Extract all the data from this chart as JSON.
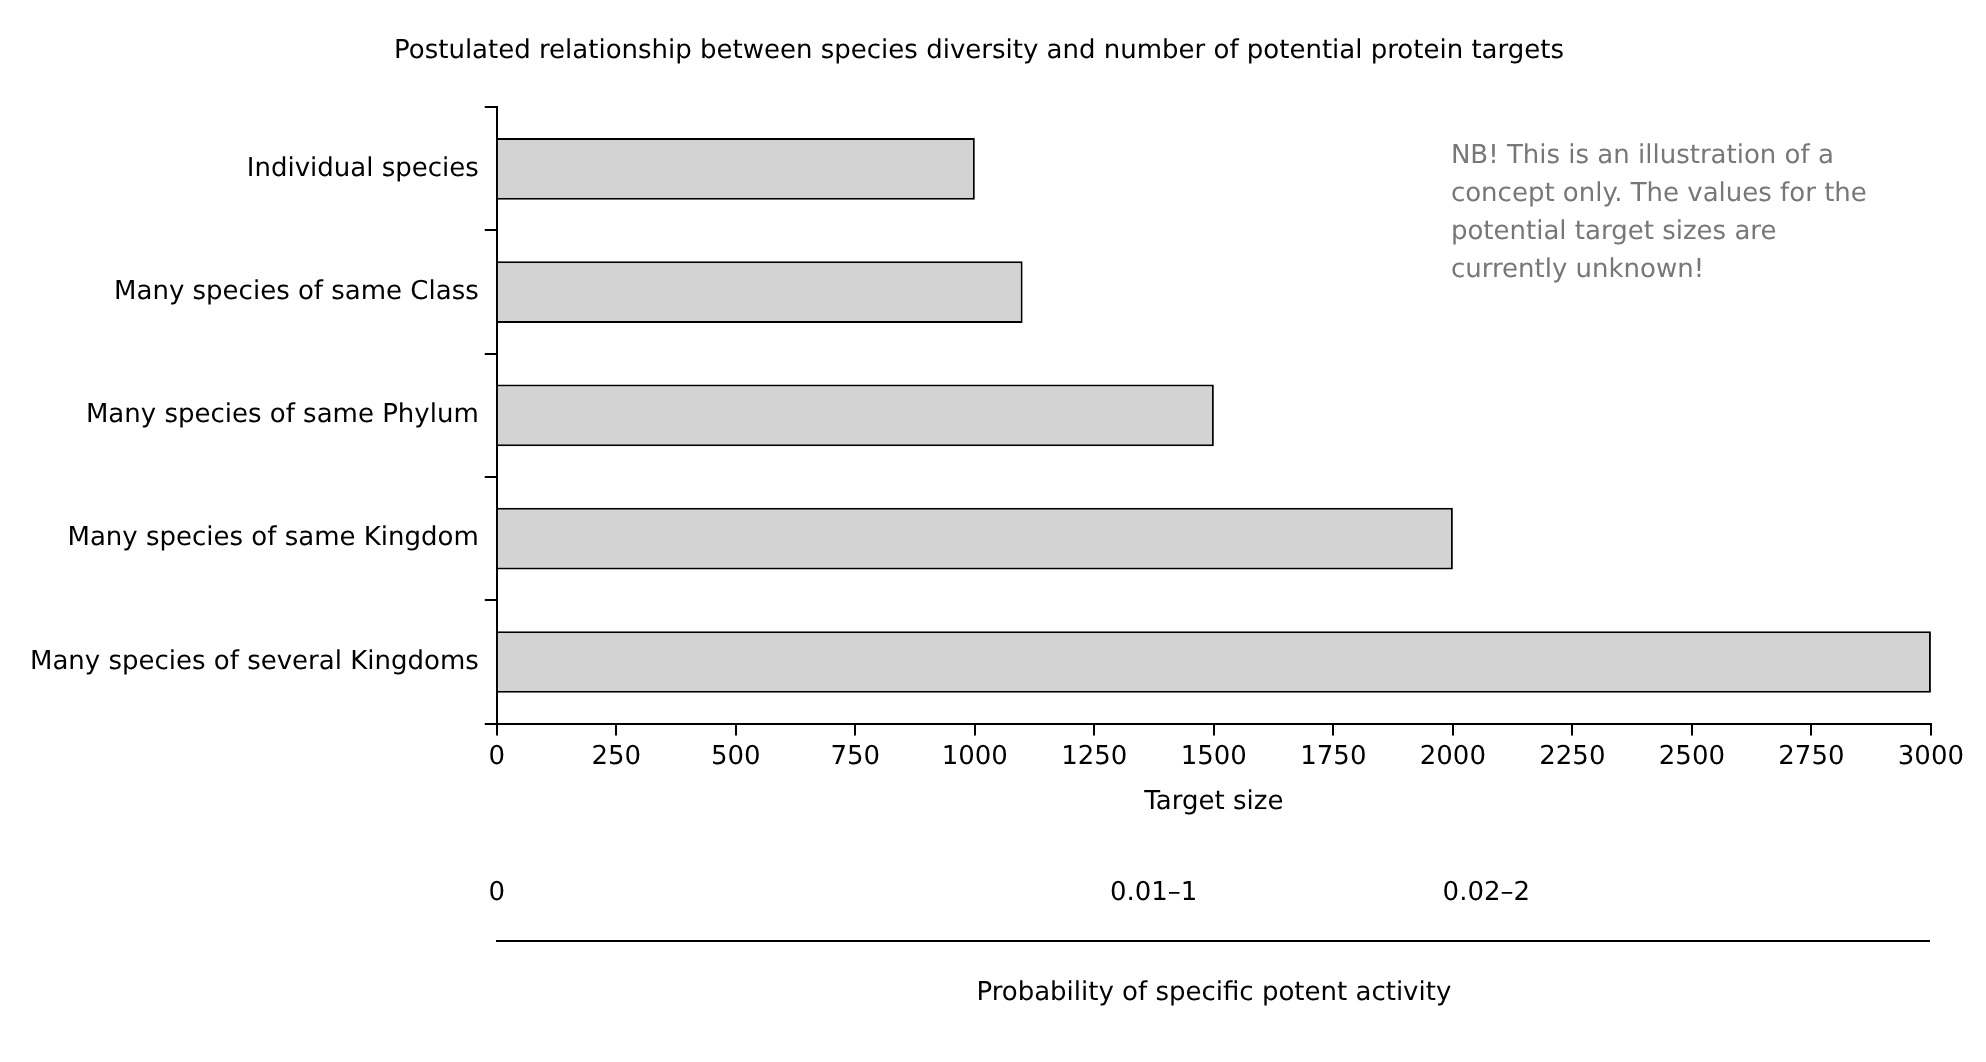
{
  "chart_data": {
    "type": "bar",
    "orientation": "horizontal",
    "title": "Postulated relationship between species diversity and number of potential protein targets",
    "categories": [
      "Individual species",
      "Many species of same Class",
      "Many species of same Phylum",
      "Many species of same Kingdom",
      "Many species of several Kingdoms"
    ],
    "values": [
      1000,
      1100,
      1500,
      2000,
      3000
    ],
    "color": "#d3d3d3",
    "xlim": [
      0,
      3000
    ],
    "xticks": [
      0,
      250,
      500,
      750,
      1000,
      1250,
      1500,
      1750,
      2000,
      2250,
      2500,
      2750,
      3000
    ],
    "xlabel": "Target size",
    "annotations": [
      "NB! This is an illustration of a concept only. The values for the potential target sizes are currently unknown!",
      "0",
      "0.01–1",
      "0.02–2",
      "Probability of specific potent activity"
    ]
  }
}
